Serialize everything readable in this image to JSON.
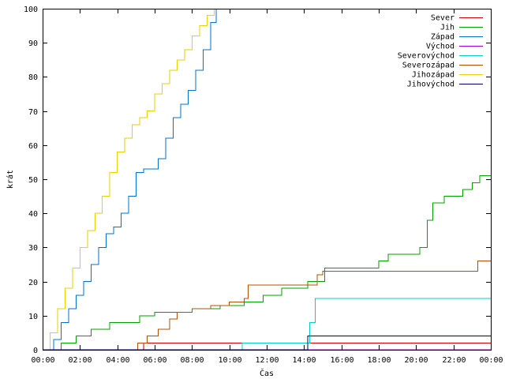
{
  "chart_data": {
    "type": "line",
    "xlabel": "Čas",
    "ylabel": "krát",
    "xlim": [
      "00:00",
      "24:00"
    ],
    "ylim": [
      0,
      100
    ],
    "x_ticks": [
      "00:00",
      "02:00",
      "04:00",
      "06:00",
      "08:00",
      "10:00",
      "12:00",
      "14:00",
      "16:00",
      "18:00",
      "20:00",
      "22:00",
      "00:00"
    ],
    "y_ticks": [
      0,
      10,
      20,
      30,
      40,
      50,
      60,
      70,
      80,
      90,
      100
    ],
    "grid": false,
    "legend_position": "top-right",
    "x_unit": "hours",
    "series": [
      {
        "name": "Sever",
        "color": "#cc0000",
        "x": [
          0,
          5.2,
          5.4,
          24
        ],
        "y": [
          0,
          0,
          2,
          2
        ]
      },
      {
        "name": "Jih",
        "color": "#00a000",
        "x": [
          0,
          0.9,
          1.0,
          1.7,
          1.8,
          2.4,
          2.6,
          3.2,
          3.6,
          4.3,
          5.2,
          6.0,
          7.0,
          8.0,
          9.5,
          10.8,
          11.8,
          12.8,
          14.2,
          15.1,
          18.0,
          18.5,
          19.5,
          20.2,
          20.6,
          20.9,
          21.5,
          22.0,
          22.5,
          23.0,
          23.4,
          23.8,
          24
        ],
        "y": [
          0,
          0,
          2,
          2,
          4,
          4,
          6,
          6,
          8,
          8,
          10,
          11,
          11,
          12,
          13,
          14,
          16,
          18,
          20,
          24,
          26,
          28,
          28,
          30,
          38,
          43,
          45,
          45,
          47,
          49,
          51,
          51,
          51
        ]
      },
      {
        "name": "Západ",
        "color": "#0070cc",
        "x": [
          0,
          0.3,
          0.6,
          1.0,
          1.4,
          1.8,
          2.2,
          2.6,
          3.0,
          3.4,
          3.8,
          4.2,
          4.6,
          5.0,
          5.4,
          5.8,
          6.2,
          6.6,
          7.0,
          7.4,
          7.8,
          8.2,
          8.6,
          9.0,
          9.3
        ],
        "y": [
          0,
          0,
          3,
          8,
          12,
          16,
          20,
          25,
          30,
          34,
          36,
          40,
          45,
          52,
          53,
          53,
          56,
          62,
          68,
          72,
          76,
          82,
          88,
          96,
          100
        ]
      },
      {
        "name": "Východ",
        "color": "#9900cc",
        "x": [
          0,
          24
        ],
        "y": [
          0,
          0
        ]
      },
      {
        "name": "Severovýchod",
        "color": "#00cccc",
        "x": [
          0,
          10.6,
          10.7,
          14.0,
          14.3,
          14.6,
          24
        ],
        "y": [
          0,
          0,
          2,
          2,
          8,
          15,
          15
        ]
      },
      {
        "name": "Severozápad",
        "color": "#b05000",
        "x": [
          0,
          5.0,
          5.1,
          5.6,
          6.2,
          6.8,
          7.2,
          8.0,
          9.0,
          10.0,
          10.8,
          11.0,
          12.0,
          13.0,
          14.2,
          14.7,
          15.0,
          16.0,
          20.0,
          23.0,
          23.3,
          24
        ],
        "y": [
          0,
          0,
          2,
          4,
          6,
          9,
          11,
          12,
          13,
          14,
          15,
          19,
          19,
          19,
          19,
          22,
          23,
          23,
          23,
          23,
          26,
          26
        ]
      },
      {
        "name": "Jihozápad",
        "color": "#e6d200",
        "x": [
          0,
          0.1,
          0.4,
          0.8,
          1.2,
          1.6,
          2.0,
          2.4,
          2.8,
          3.2,
          3.6,
          4.0,
          4.4,
          4.8,
          5.2,
          5.6,
          6.0,
          6.4,
          6.8,
          7.2,
          7.6,
          8.0,
          8.4,
          8.8,
          9.2
        ],
        "y": [
          0,
          0,
          5,
          12,
          18,
          24,
          30,
          35,
          40,
          45,
          52,
          58,
          62,
          66,
          68,
          70,
          75,
          78,
          82,
          85,
          88,
          92,
          95,
          98,
          100
        ]
      },
      {
        "name": "Jihovýchod",
        "color": "#000066",
        "x": [
          0,
          14.1,
          14.2,
          24
        ],
        "y": [
          0,
          0,
          4,
          4
        ]
      }
    ]
  }
}
